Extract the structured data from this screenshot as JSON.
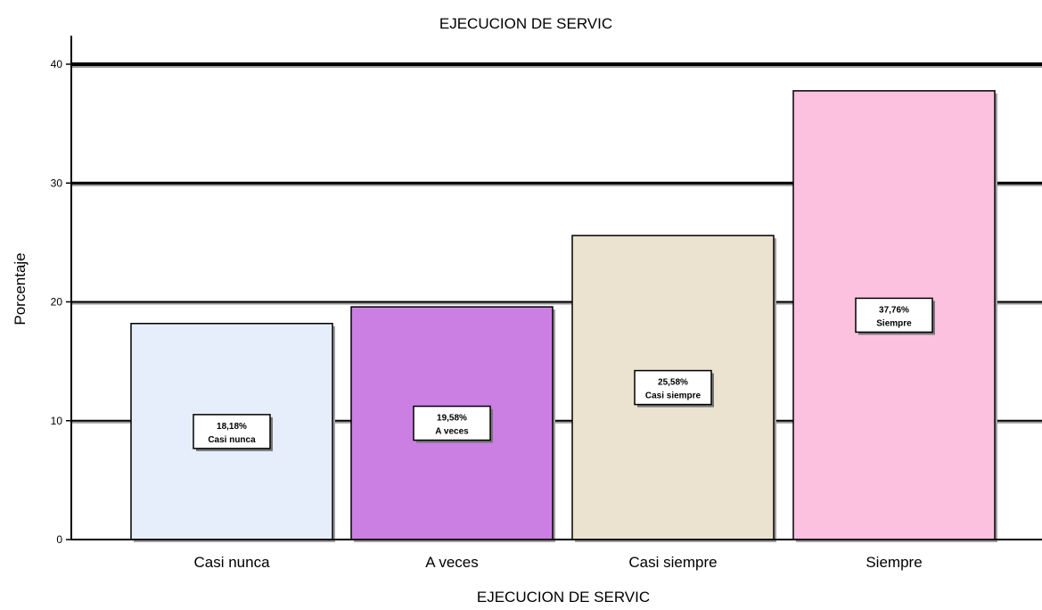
{
  "chart_data": {
    "type": "bar",
    "title": "EJECUCION DE SERVIC",
    "xlabel": "EJECUCION DE SERVIC",
    "ylabel": "Porcentaje",
    "categories": [
      "Casi nunca",
      "A veces",
      "Casi siempre",
      "Siempre"
    ],
    "values": [
      18.18,
      19.58,
      25.58,
      37.76
    ],
    "data_labels": [
      [
        "18,18%",
        "Casi nunca"
      ],
      [
        "19,58%",
        "A veces"
      ],
      [
        "25,58%",
        "Casi siempre"
      ],
      [
        "37,76%",
        "Siempre"
      ]
    ],
    "yticks": [
      0,
      10,
      20,
      30,
      40
    ],
    "ylim": [
      0,
      40
    ],
    "colors": [
      "#e6eefb",
      "#cc7fe3",
      "#ebe3cf",
      "#fdc1e0"
    ],
    "grid": true
  }
}
